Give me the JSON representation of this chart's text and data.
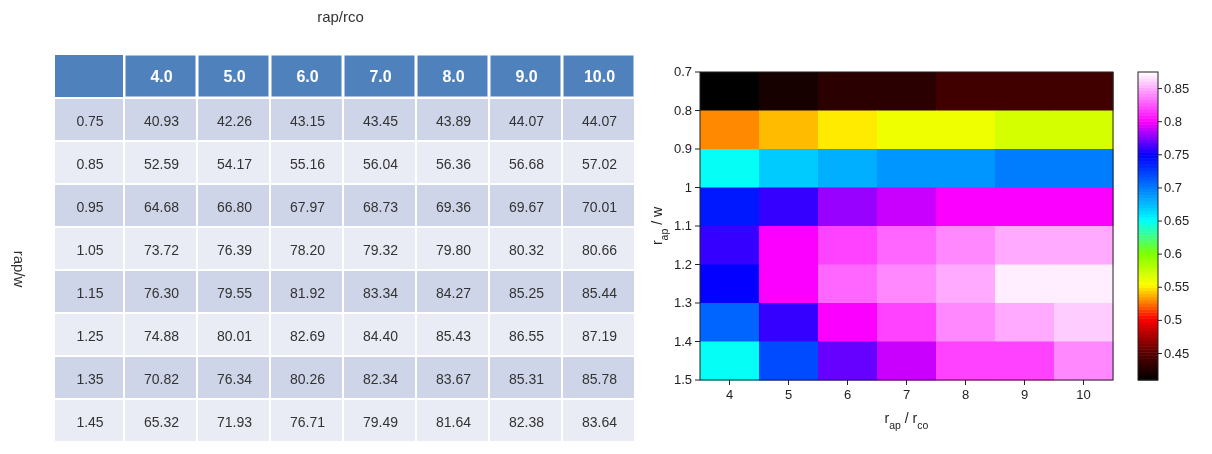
{
  "chart_data": [
    {
      "type": "heatmap",
      "xlabel": "rap/rco",
      "ylabel": "rap/w",
      "data_labels": true,
      "categories": [
        "4.0",
        "5.0",
        "6.0",
        "7.0",
        "8.0",
        "9.0",
        "10.0"
      ],
      "y_categories": [
        "0.75",
        "0.85",
        "0.95",
        "1.05",
        "1.15",
        "1.25",
        "1.35",
        "1.45"
      ],
      "cells": [
        [
          40.93,
          42.26,
          43.15,
          43.45,
          43.89,
          44.07,
          44.07
        ],
        [
          52.59,
          54.17,
          55.16,
          56.04,
          56.36,
          56.68,
          57.02
        ],
        [
          64.68,
          66.8,
          67.97,
          68.73,
          69.36,
          69.67,
          70.01
        ],
        [
          73.72,
          76.39,
          78.2,
          79.32,
          79.8,
          80.32,
          80.66
        ],
        [
          76.3,
          79.55,
          81.92,
          83.34,
          84.27,
          85.25,
          85.44
        ],
        [
          74.88,
          80.01,
          82.69,
          84.4,
          85.43,
          86.55,
          87.19
        ],
        [
          70.82,
          76.34,
          80.26,
          82.34,
          83.67,
          85.31,
          85.78
        ],
        [
          65.32,
          71.93,
          76.71,
          79.49,
          81.64,
          82.38,
          83.64
        ]
      ],
      "cell_labels": [
        [
          "40.93",
          "42.26",
          "43.15",
          "43.45",
          "43.89",
          "44.07",
          "44.07"
        ],
        [
          "52.59",
          "54.17",
          "55.16",
          "56.04",
          "56.36",
          "56.68",
          "57.02"
        ],
        [
          "64.68",
          "66.80",
          "67.97",
          "68.73",
          "69.36",
          "69.67",
          "70.01"
        ],
        [
          "73.72",
          "76.39",
          "78.20",
          "79.32",
          "79.80",
          "80.32",
          "80.66"
        ],
        [
          "76.30",
          "79.55",
          "81.92",
          "83.34",
          "84.27",
          "85.25",
          "85.44"
        ],
        [
          "74.88",
          "80.01",
          "82.69",
          "84.40",
          "85.43",
          "86.55",
          "87.19"
        ],
        [
          "70.82",
          "76.34",
          "80.26",
          "82.34",
          "83.67",
          "85.31",
          "85.78"
        ],
        [
          "65.32",
          "71.93",
          "76.71",
          "79.49",
          "81.64",
          "82.38",
          "83.64"
        ]
      ]
    },
    {
      "type": "heatmap",
      "xlabel": "r$_{ap}$ / r$_{co}$",
      "ylabel": "r$_{ap}$ / w",
      "categories": [
        "4",
        "5",
        "6",
        "7",
        "8",
        "9",
        "10"
      ],
      "ylim": [
        1.5,
        0.7
      ],
      "yticks": [
        0.7,
        0.8,
        0.9,
        {
          "value": 1,
          "label": "1"
        },
        1.1,
        1.2,
        1.3,
        1.4,
        1.5
      ],
      "cells": [
        [
          0.41,
          0.42,
          0.43,
          0.43,
          0.44,
          0.44,
          0.44
        ],
        [
          0.53,
          0.54,
          0.55,
          0.56,
          0.56,
          0.57,
          0.57
        ],
        [
          0.65,
          0.67,
          0.68,
          0.69,
          0.69,
          0.7,
          0.7
        ],
        [
          0.74,
          0.76,
          0.78,
          0.79,
          0.8,
          0.8,
          0.8
        ],
        [
          0.76,
          0.8,
          0.82,
          0.83,
          0.84,
          0.85,
          0.85
        ],
        [
          0.75,
          0.8,
          0.83,
          0.84,
          0.85,
          0.87,
          0.87
        ],
        [
          0.71,
          0.76,
          0.8,
          0.82,
          0.84,
          0.85,
          0.86
        ],
        [
          0.65,
          0.72,
          0.77,
          0.79,
          0.82,
          0.82,
          0.84
        ]
      ],
      "clim": [
        0.41,
        0.875
      ],
      "cticks": [
        0.45,
        0.5,
        0.55,
        0.6,
        0.65,
        0.7,
        0.75,
        0.8,
        0.85
      ]
    }
  ]
}
